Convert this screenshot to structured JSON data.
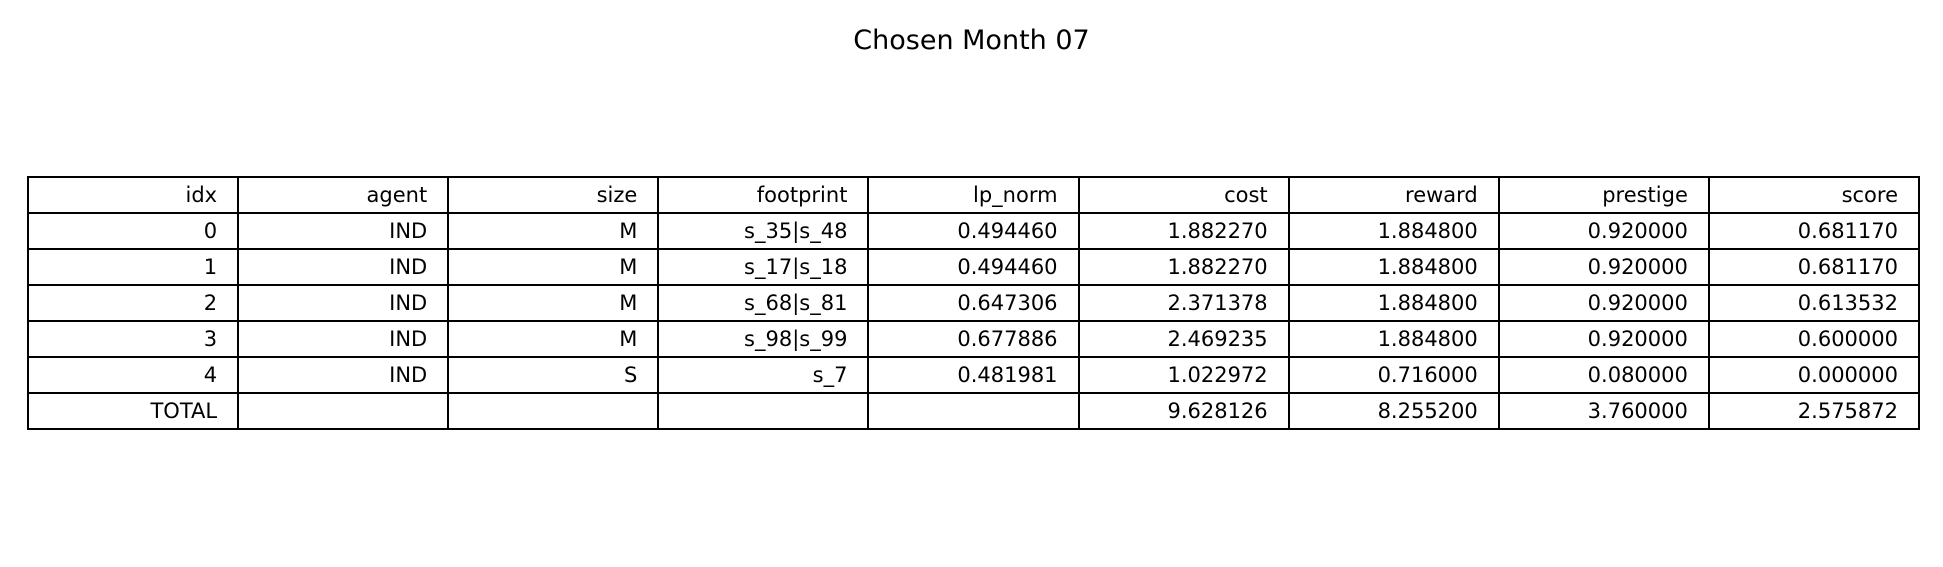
{
  "chart_data": {
    "type": "table",
    "title": "Chosen Month 07",
    "columns": [
      "idx",
      "agent",
      "size",
      "footprint",
      "lp_norm",
      "cost",
      "reward",
      "prestige",
      "score"
    ],
    "rows": [
      [
        "0",
        "IND",
        "M",
        "s_35|s_48",
        "0.494460",
        "1.882270",
        "1.884800",
        "0.920000",
        "0.681170"
      ],
      [
        "1",
        "IND",
        "M",
        "s_17|s_18",
        "0.494460",
        "1.882270",
        "1.884800",
        "0.920000",
        "0.681170"
      ],
      [
        "2",
        "IND",
        "M",
        "s_68|s_81",
        "0.647306",
        "2.371378",
        "1.884800",
        "0.920000",
        "0.613532"
      ],
      [
        "3",
        "IND",
        "M",
        "s_98|s_99",
        "0.677886",
        "2.469235",
        "1.884800",
        "0.920000",
        "0.600000"
      ],
      [
        "4",
        "IND",
        "S",
        "s_7",
        "0.481981",
        "1.022972",
        "0.716000",
        "0.080000",
        "0.000000"
      ],
      [
        "TOTAL",
        "",
        "",
        "",
        "",
        "9.628126",
        "8.255200",
        "3.760000",
        "2.575872"
      ]
    ]
  }
}
